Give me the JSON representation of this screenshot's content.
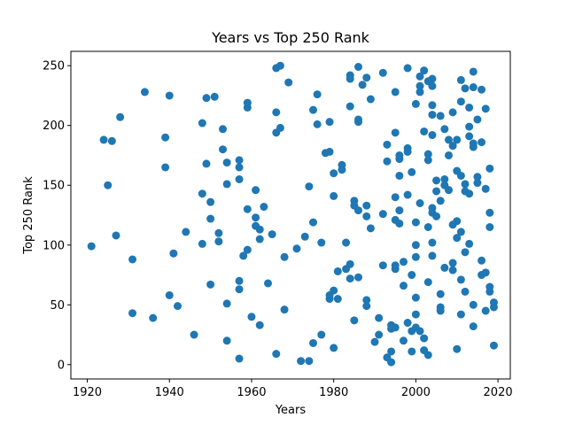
{
  "chart_data": {
    "type": "scatter",
    "title": "Years vs Top 250 Rank",
    "xlabel": "Years",
    "ylabel": "Top 250 Rank",
    "xlim": [
      1916,
      2023
    ],
    "ylim": [
      -12,
      262
    ],
    "xticks": [
      1920,
      1940,
      1960,
      1980,
      2000,
      2020
    ],
    "yticks": [
      0,
      50,
      100,
      150,
      200,
      250
    ],
    "grid": false,
    "marker_color": "#1f77b4",
    "series": [
      {
        "points": [
          [
            1921,
            99
          ],
          [
            1924,
            188
          ],
          [
            1925,
            150
          ],
          [
            1926,
            187
          ],
          [
            1927,
            108
          ],
          [
            1928,
            207
          ],
          [
            1931,
            88
          ],
          [
            1931,
            43
          ],
          [
            1934,
            228
          ],
          [
            1936,
            39
          ],
          [
            1939,
            190
          ],
          [
            1939,
            165
          ],
          [
            1940,
            225
          ],
          [
            1940,
            58
          ],
          [
            1941,
            93
          ],
          [
            1942,
            49
          ],
          [
            1944,
            111
          ],
          [
            1946,
            25
          ],
          [
            1948,
            202
          ],
          [
            1948,
            143
          ],
          [
            1948,
            101
          ],
          [
            1949,
            223
          ],
          [
            1949,
            168
          ],
          [
            1950,
            136
          ],
          [
            1950,
            122
          ],
          [
            1950,
            67
          ],
          [
            1951,
            224
          ],
          [
            1952,
            110
          ],
          [
            1952,
            103
          ],
          [
            1953,
            197
          ],
          [
            1953,
            180
          ],
          [
            1954,
            169
          ],
          [
            1954,
            151
          ],
          [
            1954,
            51
          ],
          [
            1954,
            20
          ],
          [
            1957,
            171
          ],
          [
            1957,
            165
          ],
          [
            1957,
            155
          ],
          [
            1957,
            70
          ],
          [
            1957,
            63
          ],
          [
            1957,
            5
          ],
          [
            1958,
            91
          ],
          [
            1959,
            219
          ],
          [
            1959,
            215
          ],
          [
            1959,
            130
          ],
          [
            1959,
            96
          ],
          [
            1960,
            40
          ],
          [
            1961,
            116
          ],
          [
            1961,
            123
          ],
          [
            1961,
            146
          ],
          [
            1962,
            105
          ],
          [
            1962,
            113
          ],
          [
            1962,
            33
          ],
          [
            1963,
            132
          ],
          [
            1964,
            68
          ],
          [
            1965,
            109
          ],
          [
            1966,
            248
          ],
          [
            1966,
            211
          ],
          [
            1966,
            194
          ],
          [
            1966,
            9
          ],
          [
            1967,
            250
          ],
          [
            1967,
            198
          ],
          [
            1968,
            90
          ],
          [
            1968,
            46
          ],
          [
            1969,
            236
          ],
          [
            1971,
            97
          ],
          [
            1972,
            3
          ],
          [
            1973,
            107
          ],
          [
            1974,
            149
          ],
          [
            1974,
            3
          ],
          [
            1975,
            213
          ],
          [
            1975,
            119
          ],
          [
            1975,
            18
          ],
          [
            1976,
            226
          ],
          [
            1976,
            201
          ],
          [
            1977,
            102
          ],
          [
            1977,
            25
          ],
          [
            1978,
            177
          ],
          [
            1979,
            178
          ],
          [
            1979,
            203
          ],
          [
            1979,
            55
          ],
          [
            1979,
            58
          ],
          [
            1980,
            62
          ],
          [
            1980,
            141
          ],
          [
            1980,
            14
          ],
          [
            1980,
            160
          ],
          [
            1981,
            55
          ],
          [
            1981,
            78
          ],
          [
            1982,
            167
          ],
          [
            1982,
            163
          ],
          [
            1983,
            102
          ],
          [
            1983,
            80
          ],
          [
            1984,
            84
          ],
          [
            1984,
            72
          ],
          [
            1984,
            242
          ],
          [
            1984,
            239
          ],
          [
            1984,
            216
          ],
          [
            1985,
            137
          ],
          [
            1985,
            133
          ],
          [
            1985,
            37
          ],
          [
            1986,
            249
          ],
          [
            1986,
            205
          ],
          [
            1986,
            203
          ],
          [
            1986,
            129
          ],
          [
            1986,
            73
          ],
          [
            1987,
            234
          ],
          [
            1988,
            240
          ],
          [
            1988,
            133
          ],
          [
            1988,
            124
          ],
          [
            1988,
            54
          ],
          [
            1988,
            49
          ],
          [
            1989,
            222
          ],
          [
            1989,
            114
          ],
          [
            1990,
            19
          ],
          [
            1991,
            39
          ],
          [
            1991,
            25
          ],
          [
            1992,
            244
          ],
          [
            1992,
            126
          ],
          [
            1992,
            83
          ],
          [
            1993,
            170
          ],
          [
            1993,
            184
          ],
          [
            1993,
            6
          ],
          [
            1994,
            2
          ],
          [
            1994,
            11
          ],
          [
            1994,
            30
          ],
          [
            1994,
            33
          ],
          [
            1995,
            31
          ],
          [
            1995,
            80
          ],
          [
            1995,
            83
          ],
          [
            1995,
            121
          ],
          [
            1995,
            140
          ],
          [
            1995,
            228
          ],
          [
            1995,
            194
          ],
          [
            1996,
            175
          ],
          [
            1996,
            172
          ],
          [
            1996,
            158
          ],
          [
            1996,
            129
          ],
          [
            1996,
            118
          ],
          [
            1997,
            66
          ],
          [
            1997,
            20
          ],
          [
            1997,
            86
          ],
          [
            1998,
            248
          ],
          [
            1998,
            181
          ],
          [
            1998,
            178
          ],
          [
            1998,
            142
          ],
          [
            1998,
            35
          ],
          [
            1999,
            75
          ],
          [
            1999,
            11
          ],
          [
            1999,
            28
          ],
          [
            1999,
            161
          ],
          [
            2000,
            218
          ],
          [
            2000,
            119
          ],
          [
            2000,
            100
          ],
          [
            2000,
            90
          ],
          [
            2000,
            56
          ],
          [
            2000,
            42
          ],
          [
            2000,
            31
          ],
          [
            2001,
            241
          ],
          [
            2001,
            233
          ],
          [
            2001,
            228
          ],
          [
            2001,
            135
          ],
          [
            2001,
            28
          ],
          [
            2002,
            246
          ],
          [
            2002,
            195
          ],
          [
            2002,
            22
          ],
          [
            2002,
            12
          ],
          [
            2003,
            237
          ],
          [
            2003,
            176
          ],
          [
            2003,
            171
          ],
          [
            2003,
            115
          ],
          [
            2003,
            69
          ],
          [
            2003,
            8
          ],
          [
            2004,
            239
          ],
          [
            2004,
            233
          ],
          [
            2004,
            217
          ],
          [
            2004,
            209
          ],
          [
            2004,
            192
          ],
          [
            2004,
            131
          ],
          [
            2004,
            127
          ],
          [
            2004,
            102
          ],
          [
            2004,
            91
          ],
          [
            2005,
            154
          ],
          [
            2005,
            145
          ],
          [
            2005,
            124
          ],
          [
            2006,
            208
          ],
          [
            2006,
            137
          ],
          [
            2006,
            59
          ],
          [
            2006,
            48
          ],
          [
            2006,
            45
          ],
          [
            2007,
            197
          ],
          [
            2007,
            155
          ],
          [
            2007,
            150
          ],
          [
            2007,
            81
          ],
          [
            2008,
            188
          ],
          [
            2008,
            175
          ],
          [
            2008,
            146
          ],
          [
            2009,
            211
          ],
          [
            2009,
            183
          ],
          [
            2009,
            117
          ],
          [
            2009,
            85
          ],
          [
            2009,
            79
          ],
          [
            2010,
            188
          ],
          [
            2010,
            162
          ],
          [
            2010,
            120
          ],
          [
            2010,
            106
          ],
          [
            2010,
            13
          ],
          [
            2011,
            238
          ],
          [
            2011,
            220
          ],
          [
            2011,
            158
          ],
          [
            2011,
            111
          ],
          [
            2011,
            71
          ],
          [
            2011,
            42
          ],
          [
            2012,
            231
          ],
          [
            2012,
            151
          ],
          [
            2012,
            145
          ],
          [
            2012,
            94
          ],
          [
            2012,
            61
          ],
          [
            2013,
            215
          ],
          [
            2013,
            199
          ],
          [
            2013,
            191
          ],
          [
            2013,
            143
          ],
          [
            2013,
            101
          ],
          [
            2014,
            245
          ],
          [
            2014,
            232
          ],
          [
            2014,
            185
          ],
          [
            2014,
            182
          ],
          [
            2014,
            50
          ],
          [
            2014,
            32
          ],
          [
            2015,
            205
          ],
          [
            2015,
            157
          ],
          [
            2015,
            152
          ],
          [
            2016,
            230
          ],
          [
            2016,
            186
          ],
          [
            2016,
            87
          ],
          [
            2016,
            75
          ],
          [
            2017,
            214
          ],
          [
            2017,
            147
          ],
          [
            2017,
            77
          ],
          [
            2017,
            45
          ],
          [
            2018,
            164
          ],
          [
            2018,
            127
          ],
          [
            2018,
            115
          ],
          [
            2018,
            65
          ],
          [
            2018,
            61
          ],
          [
            2019,
            52
          ],
          [
            2019,
            48
          ],
          [
            2019,
            16
          ]
        ]
      }
    ]
  }
}
